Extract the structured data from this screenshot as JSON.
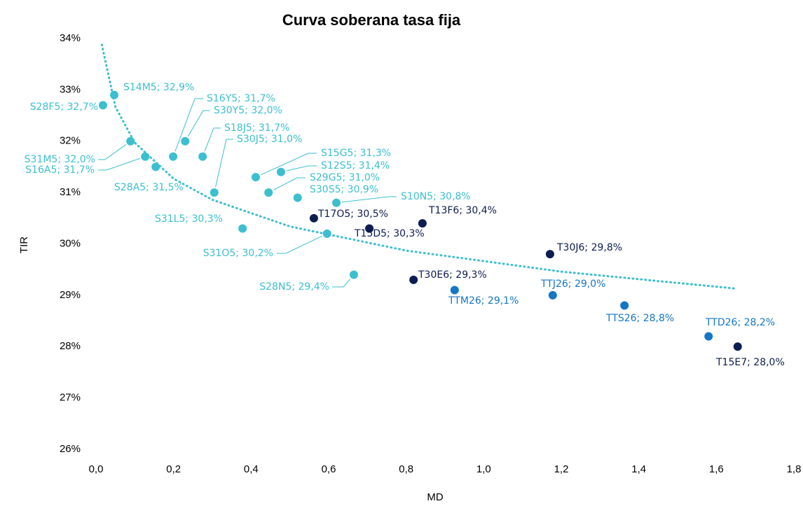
{
  "chart_data": {
    "type": "scatter",
    "title": "Curva soberana tasa fija",
    "xlabel": "MD",
    "ylabel": "TIR",
    "xlim": [
      0,
      1.8
    ],
    "ylim": [
      26,
      34
    ],
    "xticks": [
      {
        "value": 0,
        "label": "0,0"
      },
      {
        "value": 0.2,
        "label": "0,2"
      },
      {
        "value": 0.4,
        "label": "0,4"
      },
      {
        "value": 0.6,
        "label": "0,6"
      },
      {
        "value": 0.8,
        "label": "0,8"
      },
      {
        "value": 1,
        "label": "1,0"
      },
      {
        "value": 1.2,
        "label": "1,2"
      },
      {
        "value": 1.4,
        "label": "1,4"
      },
      {
        "value": 1.6,
        "label": "1,6"
      },
      {
        "value": 1.8,
        "label": "1,8"
      }
    ],
    "yticks": [
      {
        "value": 26,
        "label": "26%"
      },
      {
        "value": 27,
        "label": "27%"
      },
      {
        "value": 28,
        "label": "28%"
      },
      {
        "value": 29,
        "label": "29%"
      },
      {
        "value": 30,
        "label": "30%"
      },
      {
        "value": 31,
        "label": "31%"
      },
      {
        "value": 32,
        "label": "32%"
      },
      {
        "value": 33,
        "label": "33%"
      },
      {
        "value": 34,
        "label": "34%"
      }
    ],
    "grid": false,
    "series": [
      {
        "color": "#3cbfcf",
        "x": [
          0.018,
          0.047,
          0.089,
          0.127,
          0.154,
          0.199,
          0.23,
          0.275,
          0.305,
          0.412,
          0.477,
          0.445,
          0.52,
          0.62,
          0.378,
          0.596,
          0.665
        ],
        "values": [
          32.7,
          32.9,
          32.0,
          31.7,
          31.5,
          31.7,
          32.0,
          31.7,
          31.0,
          31.3,
          31.4,
          31.0,
          30.9,
          30.8,
          30.3,
          30.2,
          29.4
        ],
        "labels": [
          "S28F5; 32,7%",
          "S14M5; 32,9%",
          "S31M5; 32,0%",
          "S16A5; 31,7%",
          "S28A5; 31,5%",
          "S16Y5; 31,7%",
          "S30Y5; 32,0%",
          "S18J5; 31,7%",
          "S30J5; 31,0%",
          "S15G5; 31,3%",
          "S12S5; 31,4%",
          "S29G5; 31,0%",
          "S30S5; 30,9%",
          "S10N5; 30,8%",
          "S31L5; 30,3%",
          "S31O5; 30,2%",
          "S28N5; 29,4%"
        ]
      },
      {
        "color": "#0d1d4f",
        "x": [
          0.562,
          0.705,
          0.842,
          1.171,
          0.819,
          1.655
        ],
        "values": [
          30.5,
          30.3,
          30.4,
          29.8,
          29.3,
          28.0
        ],
        "labels": [
          "T17O5; 30,5%",
          "T15D5; 30,3%",
          "T13F6; 30,4%",
          "T30J6; 29,8%",
          "T30E6; 29,3%",
          "T15E7; 28,0%"
        ]
      },
      {
        "color": "#1576c6",
        "x": [
          0.925,
          1.178,
          1.363,
          1.58
        ],
        "values": [
          29.1,
          29.0,
          28.8,
          28.2
        ],
        "labels": [
          "TTM26; 29,1%",
          "TTJ26; 29,0%",
          "TTS26; 28,8%",
          "TTD26; 28,2%"
        ]
      }
    ],
    "trendline": {
      "color": "#3cbfcf",
      "x": [
        0.015,
        0.05,
        0.1,
        0.2,
        0.3,
        0.5,
        0.8,
        1.2,
        1.65
      ],
      "y": [
        33.88,
        32.67,
        31.97,
        31.27,
        30.86,
        30.34,
        29.87,
        29.46,
        29.13
      ]
    }
  }
}
